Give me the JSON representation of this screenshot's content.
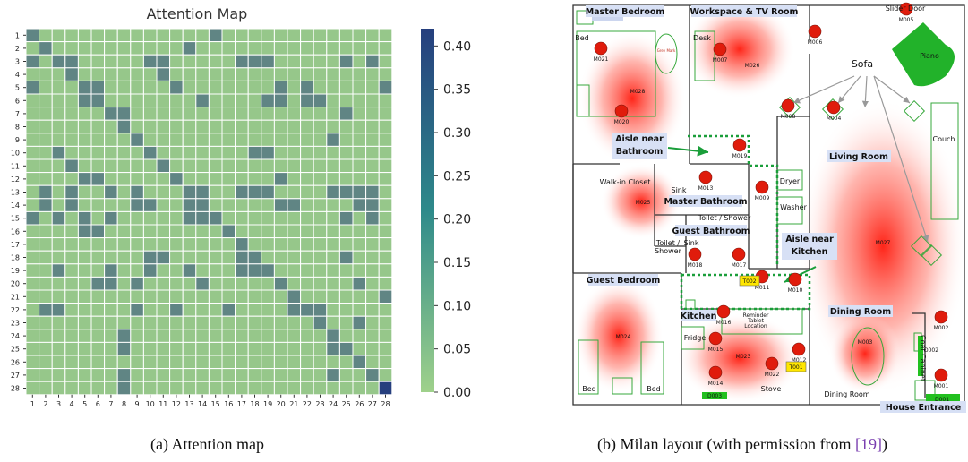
{
  "captions": {
    "left_tag": "(a)",
    "left": "Attention map",
    "right_tag": "(b)",
    "right_pre": "Milan layout (with permission from ",
    "right_ref": "[19]",
    "right_post": ")"
  },
  "chart_data": {
    "type": "heatmap",
    "title": "Attention Map",
    "xlabel": "",
    "ylabel": "",
    "labels": [
      "1",
      "2",
      "3",
      "4",
      "5",
      "6",
      "7",
      "8",
      "9",
      "10",
      "11",
      "12",
      "13",
      "14",
      "15",
      "16",
      "17",
      "18",
      "19",
      "20",
      "21",
      "22",
      "23",
      "24",
      "25",
      "26",
      "27",
      "28"
    ],
    "colorbar_ticks": [
      "0.00",
      "0.05",
      "0.10",
      "0.15",
      "0.20",
      "0.25",
      "0.30",
      "0.35",
      "0.40"
    ],
    "vmin": 0.0,
    "vmax": 0.42,
    "colors": {
      "low": "#9fd18b",
      "high": "#263f7e",
      "grid": "#ffffff"
    },
    "high_value": 0.22,
    "highlight_cell": {
      "row": 28,
      "col": 28,
      "value": 0.42
    },
    "high_cells": {
      "1": [
        1,
        15
      ],
      "2": [
        2,
        13
      ],
      "3": [
        1,
        3,
        4,
        10,
        11,
        17,
        18,
        19,
        25,
        27
      ],
      "4": [
        4,
        11
      ],
      "5": [
        1,
        5,
        6,
        12,
        20,
        22,
        28
      ],
      "6": [
        5,
        6,
        14,
        19,
        20,
        22,
        23
      ],
      "7": [
        7,
        8,
        25
      ],
      "8": [
        8
      ],
      "9": [
        9,
        24
      ],
      "10": [
        3,
        10,
        18,
        19
      ],
      "11": [
        4,
        11
      ],
      "12": [
        5,
        6,
        12,
        20
      ],
      "13": [
        2,
        4,
        7,
        9,
        13,
        14,
        17,
        18,
        19,
        24,
        25,
        26,
        27
      ],
      "14": [
        2,
        4,
        9,
        10,
        13,
        14,
        20,
        21,
        26,
        27
      ],
      "15": [
        1,
        3,
        5,
        7,
        13,
        14,
        15,
        25,
        27
      ],
      "16": [
        5,
        6,
        16
      ],
      "17": [
        17
      ],
      "18": [
        10,
        11,
        17,
        18,
        25
      ],
      "19": [
        3,
        7,
        10,
        13,
        17,
        18,
        19
      ],
      "20": [
        6,
        7,
        9,
        14,
        20,
        26
      ],
      "21": [
        21,
        28
      ],
      "22": [
        2,
        3,
        9,
        12,
        16,
        21,
        22,
        23
      ],
      "23": [
        23,
        26
      ],
      "24": [
        8,
        24
      ],
      "25": [
        8,
        24,
        25
      ],
      "26": [
        26
      ],
      "27": [
        8,
        24,
        27
      ],
      "28": [
        8
      ]
    }
  },
  "layout": {
    "rooms": [
      {
        "id": "master-bedroom",
        "label": "Master Bedroom"
      },
      {
        "id": "workspace-tv-room",
        "label": "Workspace & TV Room"
      },
      {
        "id": "aisle-near-bathroom",
        "label": "Aisle near\nBathroom"
      },
      {
        "id": "living-room",
        "label": "Living Room"
      },
      {
        "id": "master-bathroom",
        "label": "Master Bathroom"
      },
      {
        "id": "aisle-near-kitchen",
        "label": "Aisle near\nKitchen"
      },
      {
        "id": "guest-bathroom",
        "label": "Guest Bathroom"
      },
      {
        "id": "guest-bedroom",
        "label": "Guest Bedroom"
      },
      {
        "id": "kitchen",
        "label": "Kitchen"
      },
      {
        "id": "dining-room",
        "label": "Dining Room"
      },
      {
        "id": "house-entrance",
        "label": "House Entrance"
      }
    ],
    "sensors": [
      "M001",
      "M002",
      "M003",
      "M004",
      "M005",
      "M006",
      "M007",
      "M008",
      "M009",
      "M010",
      "M011",
      "M013",
      "M014",
      "M015",
      "M016",
      "M017",
      "M018",
      "M019",
      "M020",
      "M021",
      "M022",
      "M023",
      "M024",
      "M025",
      "M026",
      "M027",
      "M028",
      "M012"
    ],
    "temperature_sensors": [
      "T001",
      "T002"
    ],
    "door_sensors": [
      "D001",
      "D002",
      "D003"
    ],
    "objects": [
      "Bed",
      "Desk",
      "Slider Door",
      "Piano",
      "Sofa",
      "Couch",
      "Walk-in Closet",
      "Sink",
      "Toilet / Shower",
      "Dryer",
      "Washer",
      "Toilet /\nShower",
      "Sink",
      "Fridge",
      "Reminder\nTablet\nLocation",
      "Stove",
      "Bed",
      "Bed",
      "Dining Room",
      "Coat Cabinet"
    ],
    "small_text": "Grey Mark"
  }
}
